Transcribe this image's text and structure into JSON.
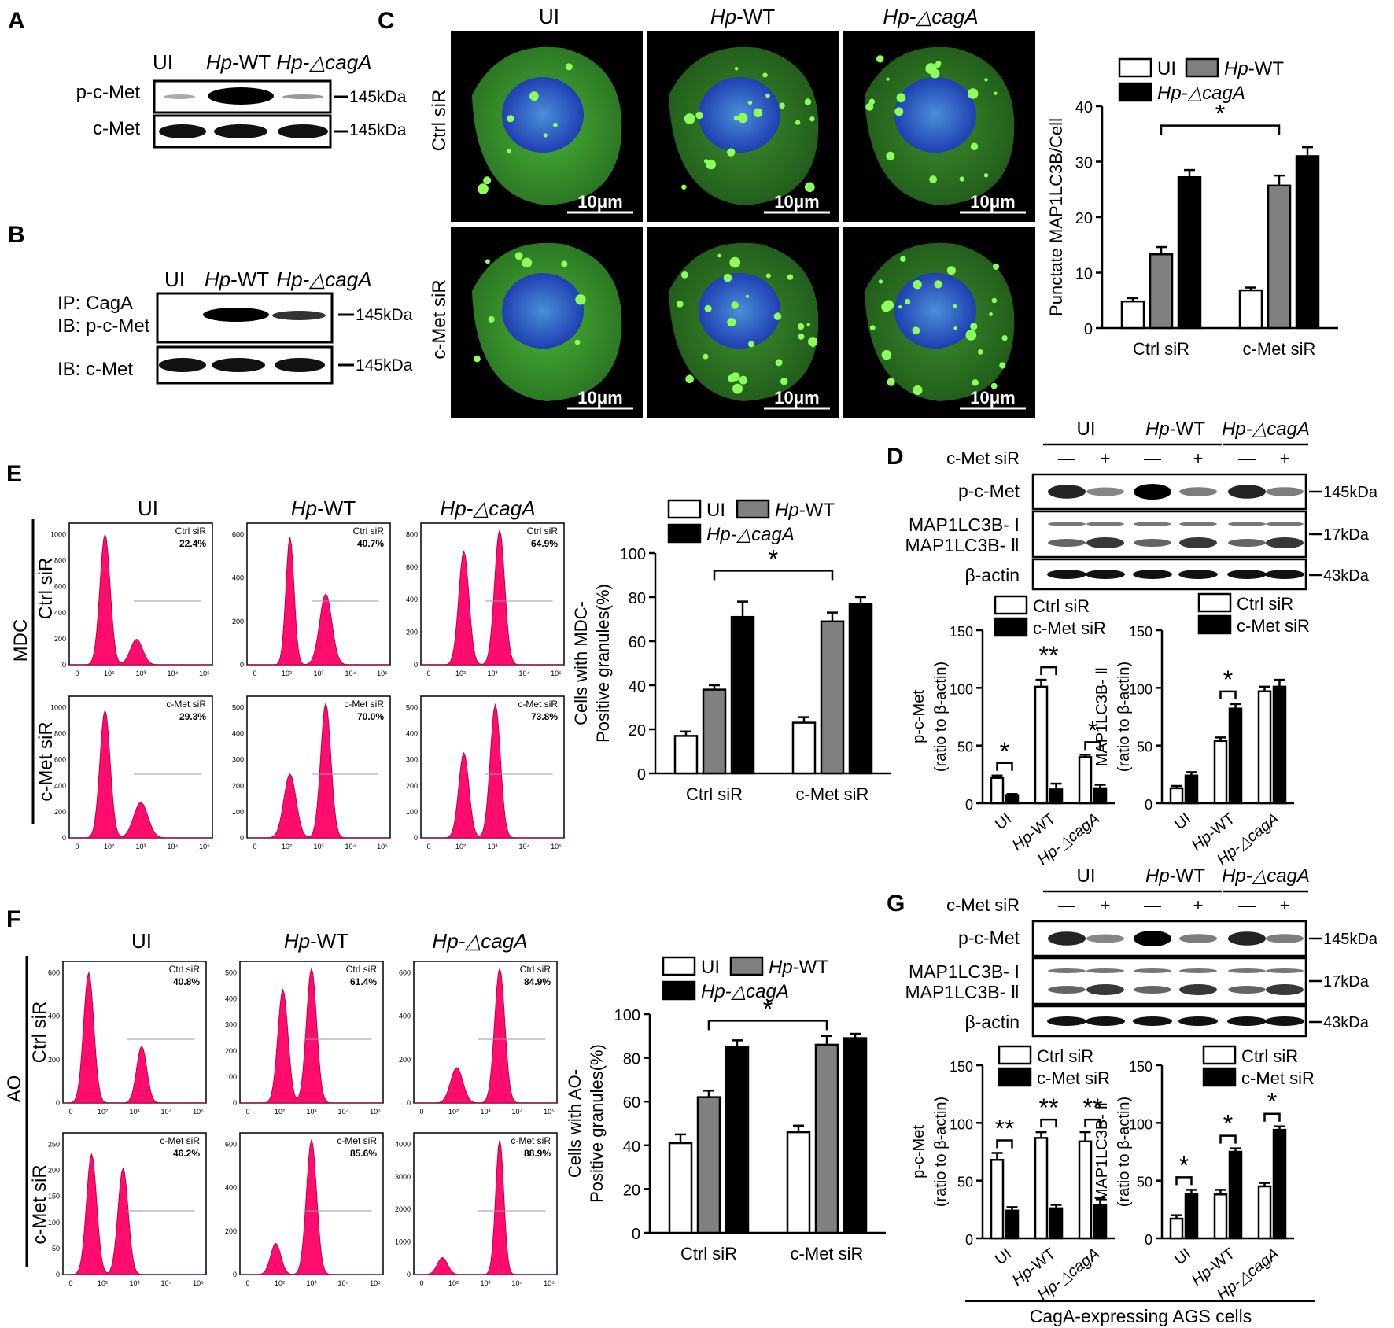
{
  "figure": {
    "panels": [
      "A",
      "B",
      "C",
      "D",
      "E",
      "F",
      "G"
    ],
    "lanes": [
      "UI",
      "Hp-WT",
      "Hp-△cagA"
    ],
    "lane_parts": [
      {
        "italic": "",
        "plain": "UI"
      },
      {
        "italic": "Hp",
        "plain": "-WT"
      },
      {
        "italic": "Hp-△cagA",
        "plain": ""
      }
    ],
    "sir": {
      "ctrl": "Ctrl siR",
      "cmet": "c-Met siR"
    },
    "kda": {
      "k145": "145kDa",
      "k17": "17kDa",
      "k43": "43kDa"
    },
    "colors": {
      "ui": "#ffffff",
      "wt": "#808080",
      "cag": "#000000",
      "ctrl_bar": "#ffffff",
      "cmet_bar": "#000000",
      "histogram": "#ff0d6e",
      "micro_green": "#3fa22f",
      "nucleus_blue": "#2a55c8"
    }
  },
  "panel_a": {
    "label": "A",
    "rows": [
      "p-c-Met",
      "c-Met"
    ]
  },
  "panel_b": {
    "label": "B",
    "rows": [
      "IP: CagA",
      "IB: p-c-Met",
      "IB: c-Met"
    ]
  },
  "panel_c": {
    "label": "C",
    "scale_bar": "10μm",
    "ylabel": "Punctate MAP1LC3B/Cell"
  },
  "panel_d": {
    "label": "D",
    "treatment": "c-Met siR",
    "signs": [
      "—",
      "+",
      "—",
      "+",
      "—",
      "+"
    ],
    "rows": [
      "p-c-Met",
      "MAP1LC3B- Ⅰ",
      "MAP1LC3B- Ⅱ",
      "β-actin"
    ],
    "ylabel_left": [
      "p-c-Met",
      "(ratio to β-actin)"
    ],
    "ylabel_right": [
      "MAP1LC3B- Ⅱ",
      "(ratio to β-actin)"
    ]
  },
  "panel_e": {
    "label": "E",
    "stain": "MDC",
    "percents": [
      "22.4%",
      "40.7%",
      "64.9%",
      "29.3%",
      "70.0%",
      "73.8%"
    ],
    "ylabel": [
      "Cells with MDC-",
      "Positive granules(%)"
    ]
  },
  "panel_f": {
    "label": "F",
    "stain": "AO",
    "percents": [
      "40.8%",
      "61.4%",
      "84.9%",
      "46.2%",
      "85.6%",
      "88.9%"
    ],
    "ylabel": [
      "Cells with AO-",
      "Positive granules(%)"
    ]
  },
  "panel_g": {
    "label": "G",
    "treatment": "c-Met siR",
    "footer": "CagA-expressing AGS cells"
  },
  "chart_data": [
    {
      "id": "C",
      "type": "bar",
      "categories": [
        "Ctrl siR",
        "c-Met siR"
      ],
      "series": [
        {
          "name": "UI",
          "values": [
            4.8,
            6.8
          ],
          "errors": [
            0.6,
            0.5
          ]
        },
        {
          "name": "Hp-WT",
          "values": [
            13.3,
            25.7
          ],
          "errors": [
            1.3,
            1.8
          ]
        },
        {
          "name": "Hp-△cagA",
          "values": [
            27.2,
            31.0
          ],
          "errors": [
            1.3,
            1.6
          ]
        }
      ],
      "ylabel": "Punctate MAP1LC3B/Cell",
      "ylim": [
        0,
        40
      ],
      "yticks": [
        0,
        10,
        20,
        30,
        40
      ],
      "annotation": "*",
      "legend": "top"
    },
    {
      "id": "E",
      "type": "bar",
      "categories": [
        "Ctrl siR",
        "c-Met siR"
      ],
      "series": [
        {
          "name": "UI",
          "values": [
            17,
            23
          ],
          "errors": [
            2,
            2.5
          ]
        },
        {
          "name": "Hp-WT",
          "values": [
            38,
            69
          ],
          "errors": [
            2,
            4
          ]
        },
        {
          "name": "Hp-△cagA",
          "values": [
            71,
            77
          ],
          "errors": [
            7,
            3
          ]
        }
      ],
      "ylabel": "Cells with MDC- Positive granules(%)",
      "ylim": [
        0,
        100
      ],
      "yticks": [
        0,
        20,
        40,
        60,
        80,
        100
      ],
      "annotation": "*",
      "legend": "top"
    },
    {
      "id": "F",
      "type": "bar",
      "categories": [
        "Ctrl siR",
        "c-Met siR"
      ],
      "series": [
        {
          "name": "UI",
          "values": [
            41,
            46
          ],
          "errors": [
            4,
            3
          ]
        },
        {
          "name": "Hp-WT",
          "values": [
            62,
            86
          ],
          "errors": [
            3,
            4
          ]
        },
        {
          "name": "Hp-△cagA",
          "values": [
            85,
            89
          ],
          "errors": [
            3,
            2
          ]
        }
      ],
      "ylabel": "Cells with AO- Positive granules(%)",
      "ylim": [
        0,
        100
      ],
      "yticks": [
        0,
        20,
        40,
        60,
        80,
        100
      ],
      "annotation": "*",
      "legend": "top"
    },
    {
      "id": "D-left",
      "type": "bar",
      "categories": [
        "UI",
        "Hp-WT",
        "Hp-△cagA"
      ],
      "series": [
        {
          "name": "Ctrl siR",
          "values": [
            22,
            101,
            40
          ],
          "errors": [
            2,
            6,
            2
          ]
        },
        {
          "name": "c-Met siR",
          "values": [
            7,
            12,
            13
          ],
          "errors": [
            1,
            5,
            3
          ]
        }
      ],
      "ylim": [
        0,
        150
      ],
      "yticks": [
        0,
        50,
        100,
        150
      ],
      "annotations": [
        "*",
        "**",
        "*"
      ],
      "legend": "top"
    },
    {
      "id": "D-right",
      "type": "bar",
      "categories": [
        "UI",
        "Hp-WT",
        "Hp-△cagA"
      ],
      "series": [
        {
          "name": "Ctrl siR",
          "values": [
            13,
            54,
            97
          ],
          "errors": [
            2,
            3,
            4
          ]
        },
        {
          "name": "c-Met siR",
          "values": [
            24,
            82,
            101
          ],
          "errors": [
            3,
            4,
            6
          ]
        }
      ],
      "ylim": [
        0,
        150
      ],
      "yticks": [
        0,
        50,
        100,
        150
      ],
      "annotations": [
        "",
        "*",
        ""
      ],
      "legend": "top"
    },
    {
      "id": "G-left",
      "type": "bar",
      "categories": [
        "UI",
        "Hp-WT",
        "Hp-△cagA"
      ],
      "series": [
        {
          "name": "Ctrl siR",
          "values": [
            68,
            87,
            84
          ],
          "errors": [
            6,
            5,
            8
          ]
        },
        {
          "name": "c-Met siR",
          "values": [
            24,
            26,
            29
          ],
          "errors": [
            3,
            3,
            6
          ]
        }
      ],
      "ylim": [
        0,
        150
      ],
      "yticks": [
        0,
        50,
        100,
        150
      ],
      "annotations": [
        "**",
        "**",
        "**"
      ],
      "legend": "top"
    },
    {
      "id": "G-right",
      "type": "bar",
      "categories": [
        "UI",
        "Hp-WT",
        "Hp-△cagA"
      ],
      "series": [
        {
          "name": "Ctrl siR",
          "values": [
            17,
            38,
            45
          ],
          "errors": [
            3,
            4,
            3
          ]
        },
        {
          "name": "c-Met siR",
          "values": [
            38,
            75,
            94
          ],
          "errors": [
            4,
            3,
            3
          ]
        }
      ],
      "ylim": [
        0,
        150
      ],
      "yticks": [
        0,
        50,
        100,
        150
      ],
      "annotations": [
        "*",
        "*",
        "*"
      ],
      "legend": "top"
    }
  ],
  "histograms": [
    {
      "id": "E",
      "label": "E",
      "sir_labels": [
        "Ctrl siR",
        "c-Met siR"
      ],
      "ytick_sets": [
        [
          "0",
          "200",
          "400",
          "600",
          "800",
          "1000"
        ],
        [
          "0",
          "200",
          "400",
          "600"
        ],
        [
          "0",
          "200",
          "400",
          "600",
          "800"
        ],
        [
          "0",
          "200",
          "400",
          "600",
          "800",
          "1000"
        ],
        [
          "0",
          "100",
          "200",
          "300",
          "400",
          "500"
        ],
        [
          "0",
          "100",
          "200",
          "300",
          "400",
          "500"
        ]
      ]
    },
    {
      "id": "F",
      "label": "F",
      "sir_labels": [
        "Ctrl siR",
        "c-Met siR"
      ],
      "ytick_sets": [
        [
          "0",
          "200",
          "400",
          "600"
        ],
        [
          "0",
          "100",
          "200",
          "300",
          "400",
          "500"
        ],
        [
          "0",
          "200",
          "400",
          "600"
        ],
        [
          "0",
          "50",
          "100",
          "150",
          "200",
          "250"
        ],
        [
          "0",
          "200",
          "400",
          "600"
        ],
        [
          "0",
          "1000",
          "2000",
          "3000",
          "4000"
        ]
      ]
    }
  ],
  "hist_xticks": [
    "0",
    "10²",
    "10³",
    "10⁴",
    "10⁵"
  ]
}
